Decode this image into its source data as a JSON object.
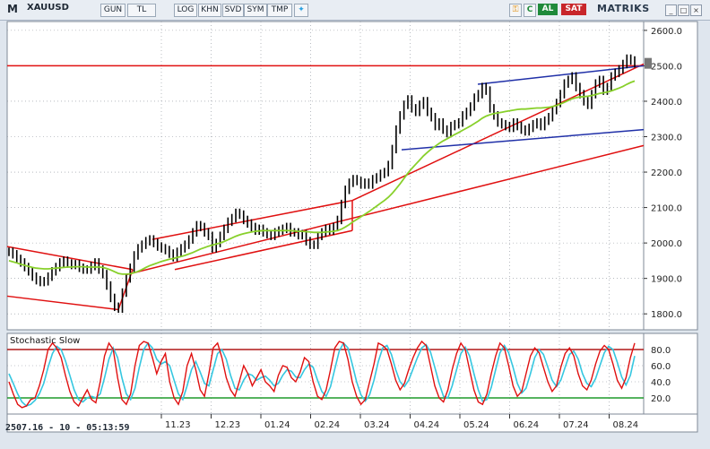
{
  "toolbar": {
    "app_letter": "M",
    "symbol": "XAUUSD",
    "buttons": [
      "GUN",
      "TL",
      "LOG",
      "KHN",
      "SVD",
      "SYM",
      "TMP"
    ],
    "c_label": "C",
    "al_label": "AL",
    "sat_label": "SAT",
    "brand": "MATRIKS"
  },
  "status_text": "2507.16 - 10 - 05:13:59",
  "colors": {
    "bg": "#ffffff",
    "grid": "#8a9099",
    "price": "#000000",
    "ma": "#88d02b",
    "red_line": "#e01010",
    "blue_line": "#2030a8",
    "stoch_k": "#e01010",
    "stoch_d": "#35c7e0",
    "ob_line": "#b01818",
    "os_line": "#1f9a2a"
  },
  "chart_data": [
    {
      "type": "line",
      "title": "",
      "series_name": "XAUUSD",
      "y_ticks": [
        1800,
        1900,
        2000,
        2100,
        2200,
        2300,
        2400,
        2500,
        2600
      ],
      "ylim": [
        1755,
        2625
      ],
      "x_ticks": [
        "11.23",
        "12.23",
        "01.24",
        "02.24",
        "03.24",
        "04.24",
        "05.24",
        "06.24",
        "07.24",
        "08.24"
      ],
      "close_series": [
        1975,
        1968,
        1955,
        1945,
        1932,
        1920,
        1905,
        1895,
        1890,
        1892,
        1905,
        1920,
        1932,
        1945,
        1950,
        1942,
        1938,
        1940,
        1930,
        1925,
        1925,
        1935,
        1945,
        1925,
        1912,
        1880,
        1845,
        1820,
        1815,
        1860,
        1900,
        1930,
        1965,
        1985,
        1995,
        2005,
        2010,
        2000,
        1990,
        1985,
        1980,
        1970,
        1960,
        1975,
        1985,
        1995,
        2010,
        2030,
        2050,
        2045,
        2030,
        2020,
        1985,
        2000,
        2020,
        2040,
        2060,
        2070,
        2085,
        2080,
        2065,
        2055,
        2045,
        2035,
        2040,
        2030,
        2025,
        2020,
        2030,
        2035,
        2040,
        2045,
        2030,
        2030,
        2022,
        2025,
        2005,
        1995,
        1995,
        2020,
        2030,
        2040,
        2035,
        2045,
        2065,
        2110,
        2150,
        2170,
        2180,
        2175,
        2165,
        2170,
        2165,
        2180,
        2185,
        2195,
        2200,
        2220,
        2265,
        2320,
        2360,
        2390,
        2405,
        2380,
        2370,
        2390,
        2400,
        2370,
        2355,
        2330,
        2340,
        2320,
        2310,
        2330,
        2335,
        2340,
        2360,
        2370,
        2385,
        2410,
        2420,
        2440,
        2430,
        2380,
        2360,
        2340,
        2335,
        2330,
        2325,
        2340,
        2330,
        2320,
        2315,
        2325,
        2335,
        2340,
        2330,
        2345,
        2355,
        2375,
        2395,
        2420,
        2450,
        2460,
        2470,
        2440,
        2420,
        2400,
        2390,
        2420,
        2450,
        2460,
        2430,
        2440,
        2470,
        2480,
        2490,
        2505,
        2520,
        2515,
        2507
      ],
      "ma_series": [
        1950,
        1947,
        1944,
        1940,
        1937,
        1934,
        1931,
        1929,
        1928,
        1927,
        1927,
        1928,
        1929,
        1930,
        1931,
        1932,
        1932,
        1933,
        1933,
        1933,
        1932,
        1932,
        1932,
        1932,
        1931,
        1928,
        1924,
        1919,
        1914,
        1912,
        1912,
        1913,
        1916,
        1920,
        1925,
        1931,
        1936,
        1940,
        1944,
        1948,
        1951,
        1954,
        1956,
        1959,
        1962,
        1965,
        1969,
        1973,
        1978,
        1983,
        1987,
        1991,
        1994,
        1997,
        2000,
        2004,
        2009,
        2014,
        2019,
        2023,
        2026,
        2029,
        2031,
        2033,
        2034,
        2035,
        2035,
        2035,
        2035,
        2035,
        2035,
        2035,
        2035,
        2034,
        2033,
        2033,
        2032,
        2031,
        2030,
        2030,
        2030,
        2031,
        2032,
        2033,
        2035,
        2039,
        2045,
        2052,
        2060,
        2067,
        2074,
        2081,
        2088,
        2096,
        2104,
        2112,
        2120,
        2129,
        2140,
        2153,
        2167,
        2182,
        2197,
        2210,
        2222,
        2234,
        2246,
        2256,
        2265,
        2273,
        2281,
        2288,
        2294,
        2300,
        2306,
        2312,
        2318,
        2324,
        2330,
        2337,
        2344,
        2352,
        2358,
        2362,
        2365,
        2367,
        2369,
        2371,
        2373,
        2375,
        2377,
        2378,
        2378,
        2379,
        2380,
        2381,
        2381,
        2382,
        2383,
        2385,
        2388,
        2392,
        2397,
        2402,
        2407,
        2410,
        2412,
        2413,
        2414,
        2416,
        2419,
        2422,
        2424,
        2426,
        2429,
        2433,
        2437,
        2442,
        2448,
        2453,
        2457
      ],
      "hlines": [
        2500
      ],
      "trendlines": [
        {
          "color": "red",
          "from": [
            0,
            1990
          ],
          "to": [
            1,
            1930
          ]
        },
        {
          "color": "red",
          "from": [
            0,
            1850
          ],
          "to": [
            1,
            1810
          ]
        }
      ]
    },
    {
      "type": "line",
      "title": "Stochastic Slow",
      "ylim": [
        0,
        100
      ],
      "y_ticks": [
        20,
        40,
        60,
        80
      ],
      "levels": [
        80,
        20
      ],
      "k_series": [
        40,
        25,
        12,
        8,
        10,
        18,
        20,
        35,
        55,
        80,
        88,
        82,
        70,
        48,
        28,
        15,
        10,
        20,
        30,
        18,
        14,
        40,
        72,
        88,
        80,
        45,
        18,
        12,
        25,
        60,
        85,
        90,
        88,
        70,
        50,
        65,
        75,
        40,
        20,
        12,
        28,
        60,
        75,
        55,
        30,
        22,
        50,
        82,
        88,
        70,
        45,
        30,
        22,
        40,
        60,
        50,
        35,
        45,
        55,
        40,
        35,
        28,
        48,
        60,
        58,
        45,
        40,
        52,
        70,
        65,
        40,
        22,
        18,
        30,
        55,
        82,
        90,
        88,
        68,
        40,
        22,
        12,
        18,
        40,
        62,
        88,
        85,
        80,
        62,
        42,
        30,
        38,
        55,
        70,
        82,
        90,
        85,
        60,
        35,
        20,
        15,
        30,
        55,
        75,
        88,
        80,
        55,
        30,
        15,
        12,
        25,
        50,
        72,
        88,
        82,
        60,
        35,
        22,
        28,
        50,
        72,
        82,
        76,
        58,
        40,
        28,
        35,
        58,
        75,
        82,
        72,
        50,
        35,
        30,
        42,
        62,
        78,
        85,
        80,
        62,
        42,
        32,
        45,
        70,
        88
      ],
      "d_series": [
        50,
        38,
        25,
        15,
        10,
        12,
        17,
        25,
        38,
        58,
        75,
        84,
        80,
        66,
        48,
        30,
        18,
        15,
        20,
        22,
        20,
        25,
        45,
        68,
        82,
        70,
        45,
        25,
        18,
        32,
        58,
        80,
        88,
        82,
        68,
        62,
        65,
        60,
        42,
        25,
        18,
        35,
        55,
        65,
        52,
        38,
        35,
        55,
        75,
        80,
        68,
        48,
        32,
        30,
        42,
        50,
        48,
        42,
        45,
        47,
        42,
        35,
        38,
        48,
        55,
        53,
        46,
        45,
        55,
        62,
        58,
        42,
        28,
        22,
        34,
        56,
        78,
        88,
        82,
        62,
        40,
        24,
        16,
        24,
        42,
        65,
        82,
        85,
        74,
        55,
        40,
        34,
        42,
        56,
        70,
        82,
        86,
        77,
        58,
        38,
        22,
        20,
        35,
        55,
        75,
        83,
        72,
        50,
        30,
        16,
        18,
        33,
        55,
        76,
        85,
        76,
        58,
        38,
        26,
        32,
        50,
        70,
        80,
        74,
        58,
        42,
        34,
        42,
        58,
        74,
        78,
        68,
        50,
        38,
        34,
        44,
        60,
        76,
        84,
        80,
        64,
        46,
        36,
        48,
        72
      ]
    }
  ]
}
